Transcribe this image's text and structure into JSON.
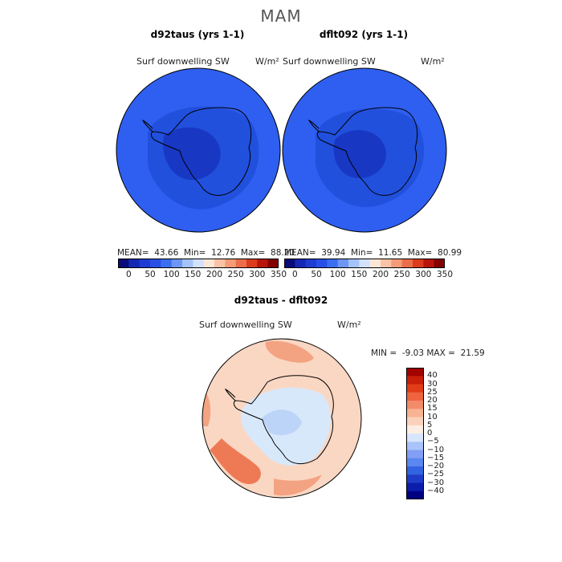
{
  "page": {
    "season_title": "MAM"
  },
  "panels": [
    {
      "title": "d92taus (yrs 1-1)",
      "variable": "Surf downwelling SW",
      "unit": "W/m²",
      "stats": {
        "mean_label": "MEAN=",
        "mean": "43.66",
        "min_label": "Min=",
        "min": "12.76",
        "max_label": "Max=",
        "max": "88.20"
      }
    },
    {
      "title": "dflt092 (yrs 1-1)",
      "variable": "Surf downwelling SW",
      "unit": "W/m²",
      "stats": {
        "mean_label": "MEAN=",
        "mean": "39.94",
        "min_label": "Min=",
        "min": "11.65",
        "max_label": "Max=",
        "max": "80.99"
      }
    }
  ],
  "shared_colorbar": {
    "colors": [
      "#0a0a78",
      "#1428b4",
      "#1e3cd2",
      "#2850e6",
      "#3c6ef0",
      "#6e96f5",
      "#a5c3fa",
      "#d2e1fc",
      "#fce6d7",
      "#fac3a5",
      "#f59b78",
      "#eb6e4b",
      "#dc3c1e",
      "#b9140a",
      "#820000"
    ],
    "tick_labels": [
      "0",
      "50",
      "100",
      "150",
      "200",
      "250",
      "300",
      "350"
    ]
  },
  "diff_panel": {
    "title": "d92taus - dflt092",
    "variable": "Surf downwelling SW",
    "unit": "W/m²",
    "minmax": {
      "min_label": "MIN =",
      "min": "-9.03",
      "max_label": "MAX =",
      "max": "21.59"
    },
    "colorbar": {
      "colors": [
        "#000080",
        "#0a1eaa",
        "#1e3cc8",
        "#3264e1",
        "#5a87f0",
        "#829ff5",
        "#aac3fa",
        "#d7e6fc",
        "#fdeee3",
        "#fad2bb",
        "#f7b393",
        "#f38b69",
        "#ee6441",
        "#e23c19",
        "#c81e0a",
        "#a00000"
      ],
      "tick_labels": [
        "40",
        "30",
        "25",
        "20",
        "15",
        "10",
        "5",
        "0",
        "−5",
        "−10",
        "−15",
        "−20",
        "−25",
        "−30",
        "−40"
      ]
    }
  },
  "map_colors": {
    "ocean_blue": "#2f5ff0",
    "mid_blue": "#2150dd",
    "deep_blue": "#1838c4",
    "diff_base": "#fad7c3",
    "diff_warm": "#f3a382",
    "diff_hot": "#ee7a55",
    "diff_cool": "#d8e8fb",
    "diff_cool2": "#bcd4f7"
  }
}
